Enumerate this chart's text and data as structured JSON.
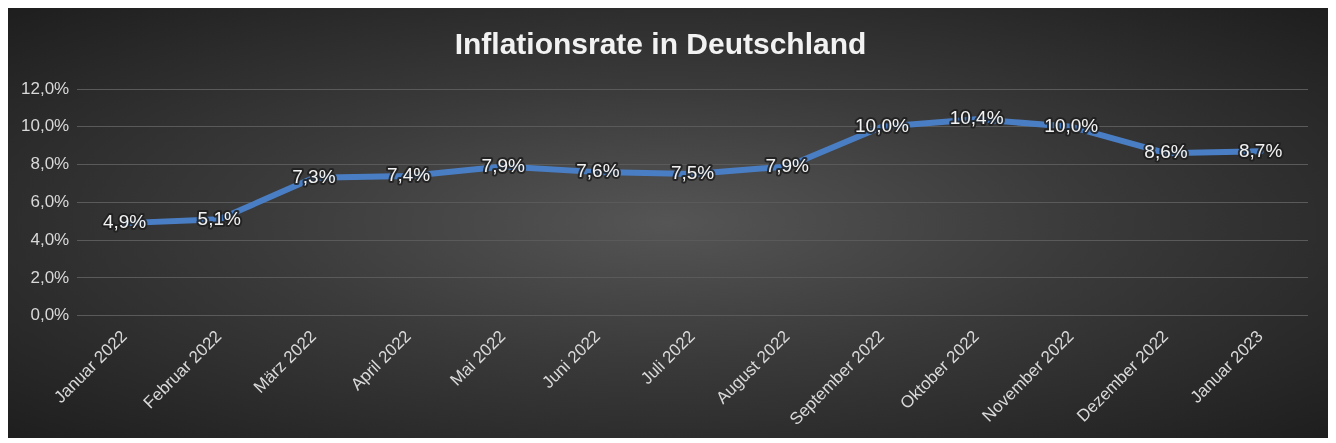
{
  "chart_data": {
    "type": "line",
    "title": "Inflationsrate in Deutschland",
    "categories": [
      "Januar 2022",
      "Februar 2022",
      "März 2022",
      "April 2022",
      "Mai 2022",
      "Juni 2022",
      "Juli 2022",
      "August 2022",
      "September 2022",
      "Oktober 2022",
      "November 2022",
      "Dezember 2022",
      "Januar 2023"
    ],
    "values": [
      4.9,
      5.1,
      7.3,
      7.4,
      7.9,
      7.6,
      7.5,
      7.9,
      10.0,
      10.4,
      10.0,
      8.6,
      8.7
    ],
    "value_labels": [
      "4,9%",
      "5,1%",
      "7,3%",
      "7,4%",
      "7,9%",
      "7,6%",
      "7,5%",
      "7,9%",
      "10,0%",
      "10,4%",
      "10,0%",
      "8,6%",
      "8,7%"
    ],
    "color": "#4a7ec4",
    "ylim": [
      0,
      12
    ],
    "yticks": [
      {
        "value": 0,
        "label": "0,0%"
      },
      {
        "value": 2,
        "label": "2,0%"
      },
      {
        "value": 4,
        "label": "4,0%"
      },
      {
        "value": 6,
        "label": "6,0%"
      },
      {
        "value": 8,
        "label": "8,0%"
      },
      {
        "value": 10,
        "label": "10,0%"
      },
      {
        "value": 12,
        "label": "12,0%"
      }
    ],
    "grid": "y"
  }
}
